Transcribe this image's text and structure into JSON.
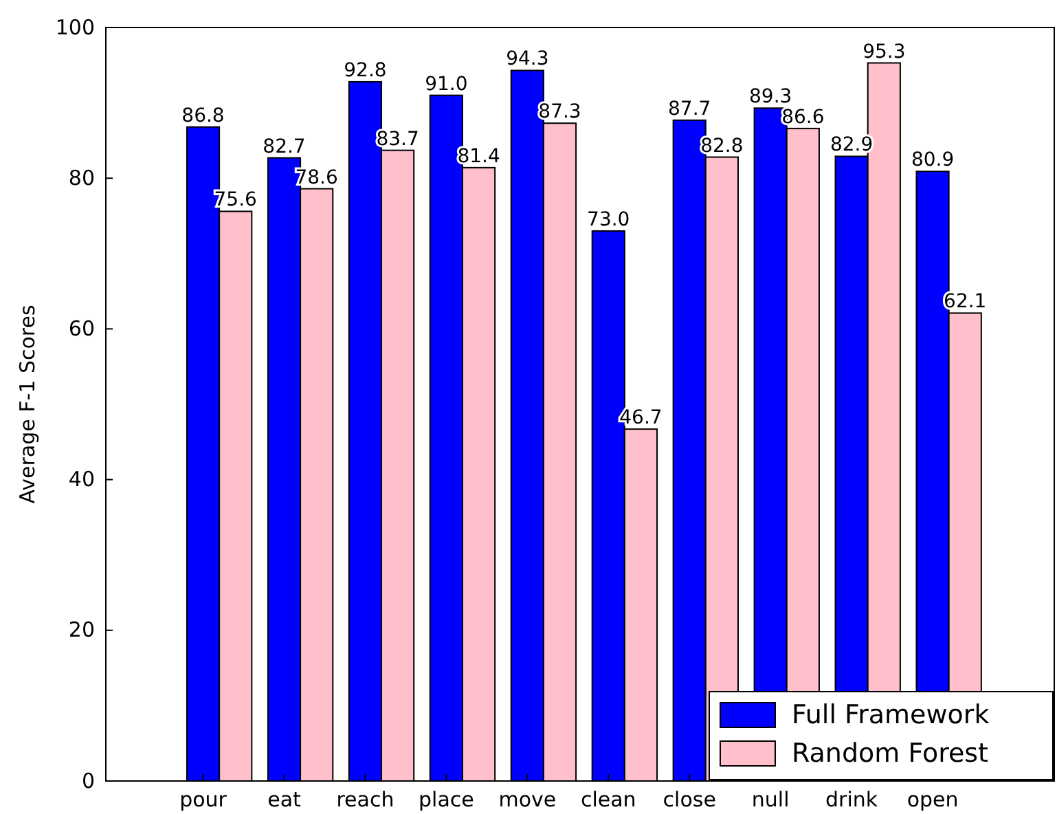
{
  "chart_data": {
    "type": "bar",
    "ylabel": "Average F-1 Scores",
    "categories": [
      "pour",
      "eat",
      "reach",
      "place",
      "move",
      "clean",
      "close",
      "null",
      "drink",
      "open"
    ],
    "series": [
      {
        "name": "Full Framework",
        "color": "#0000ff",
        "values": [
          86.8,
          82.7,
          92.8,
          91.0,
          94.3,
          73.0,
          87.7,
          89.3,
          82.9,
          80.9
        ],
        "value_labels": [
          "86.8",
          "82.7",
          "92.8",
          "91.0",
          "94.3",
          "73.0",
          "87.7",
          "89.3",
          "82.9",
          "80.9"
        ]
      },
      {
        "name": "Random Forest",
        "color": "#ffc0cb",
        "values": [
          75.6,
          78.6,
          83.7,
          81.4,
          87.3,
          46.7,
          82.8,
          86.6,
          95.3,
          62.1
        ],
        "value_labels": [
          "75.6",
          "78.6",
          "83.7",
          "81.4",
          "87.3",
          "46.7",
          "82.8",
          "86.6",
          "95.3",
          "62.1"
        ]
      }
    ],
    "ylim": [
      0,
      100
    ],
    "yticks": [
      0,
      20,
      40,
      60,
      80,
      100
    ],
    "legend": "bottom right",
    "grid": false
  }
}
